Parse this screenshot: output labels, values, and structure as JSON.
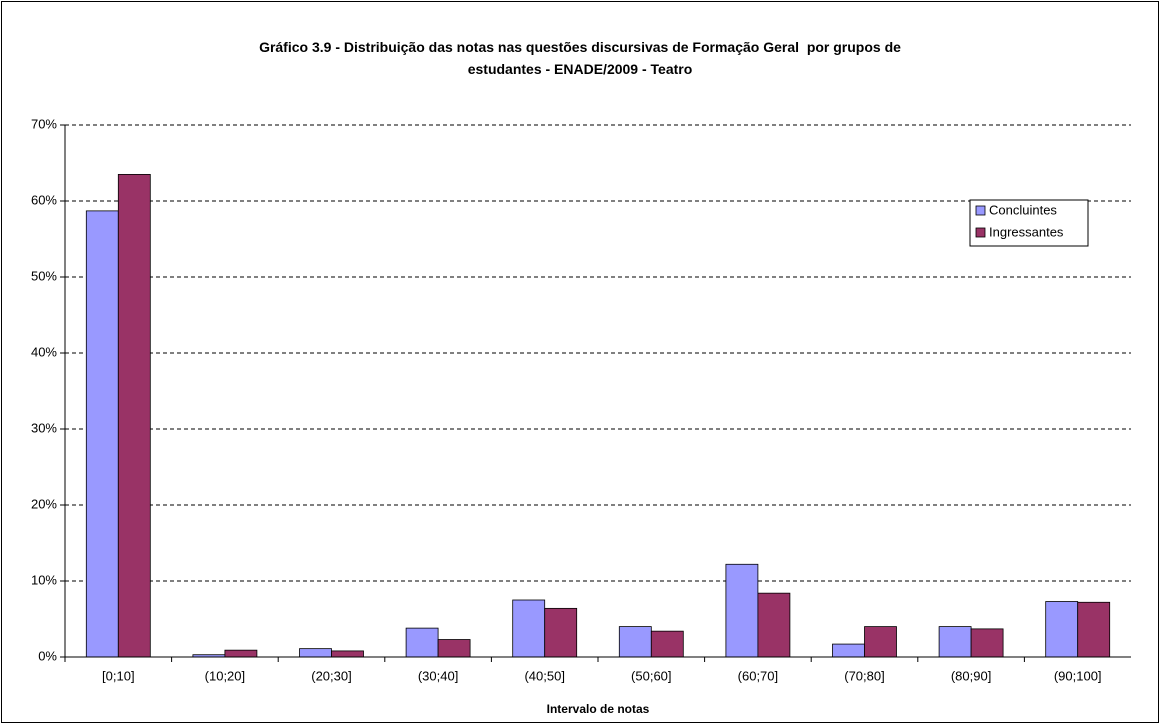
{
  "chart_data": {
    "type": "bar",
    "title": "Gráfico 3.9 - Distribuição das notas nas questões discursivas de Formação Geral  por grupos de estudantes - ENADE/2009 - Teatro",
    "xlabel": "Intervalo de notas",
    "categories": [
      "[0;10]",
      "(10;20]",
      "(20;30]",
      "(30;40]",
      "(40;50]",
      "(50;60]",
      "(60;70]",
      "(70;80]",
      "(80;90]",
      "(90;100]"
    ],
    "series": [
      {
        "name": "Concluintes",
        "color": "#9999ff",
        "values": [
          58.7,
          0.3,
          1.1,
          3.8,
          7.5,
          4.0,
          12.2,
          1.7,
          4.0,
          7.3
        ]
      },
      {
        "name": "Ingressantes",
        "color": "#993366",
        "values": [
          63.5,
          0.9,
          0.8,
          2.3,
          6.4,
          3.4,
          8.4,
          4.0,
          3.7,
          7.2
        ]
      }
    ],
    "ylim": [
      0,
      70
    ],
    "yticks": [
      {
        "value": 0,
        "label": "0%"
      },
      {
        "value": 10,
        "label": "10%"
      },
      {
        "value": 20,
        "label": "20%"
      },
      {
        "value": 30,
        "label": "30%"
      },
      {
        "value": 40,
        "label": "40%"
      },
      {
        "value": 50,
        "label": "50%"
      },
      {
        "value": 60,
        "label": "60%"
      },
      {
        "value": 70,
        "label": "70%"
      }
    ],
    "grid": true,
    "legend": "upper right"
  }
}
